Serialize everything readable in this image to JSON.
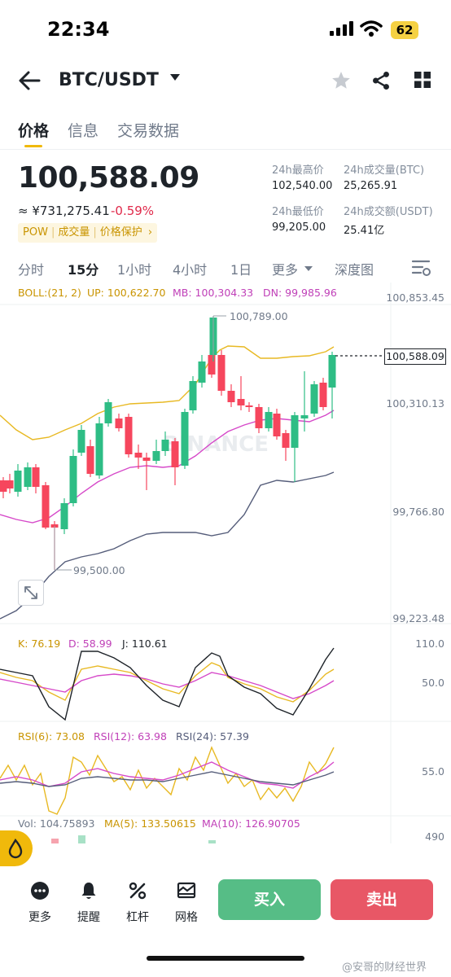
{
  "status_bar": {
    "time": "22:34",
    "battery": "62"
  },
  "header": {
    "pair": "BTC/USDT"
  },
  "tabs": [
    "价格",
    "信息",
    "交易数据"
  ],
  "price": {
    "last": "100,588.09",
    "cny": "≈ ¥731,275.41",
    "change": "-0.59%",
    "tags": [
      "POW",
      "成交量",
      "价格保护"
    ],
    "tags_arrow": "›"
  },
  "stats": {
    "high_label": "24h最高价",
    "high": "102,540.00",
    "vol_btc_label": "24h成交量(BTC)",
    "vol_btc": "25,265.91",
    "low_label": "24h最低价",
    "low": "99,205.00",
    "vol_usdt_label": "24h成交额(USDT)",
    "vol_usdt": "25.41亿"
  },
  "intervals": [
    "分时",
    "15分",
    "1小时",
    "4小时",
    "1日",
    "更多",
    "深度图"
  ],
  "indicators": {
    "boll": "BOLL:(21, 2)",
    "up": "UP: 100,622.70",
    "mb": "MB: 100,304.33",
    "dn": "DN: 99,985.96",
    "k": "K: 76.19",
    "d": "D: 58.99",
    "j": "J: 110.61",
    "rsi6": "RSI(6): 73.08",
    "rsi12": "RSI(12): 63.98",
    "rsi24": "RSI(24): 57.39",
    "vol": "Vol: 104.75893",
    "ma5": "MA(5): 133.50615",
    "ma10": "MA(10): 126.90705"
  },
  "axis": {
    "p1": "100,853.45",
    "p2": "100,310.13",
    "p3": "99,766.80",
    "p4": "99,223.48",
    "kdj_hi": "110.0",
    "kdj_mid": "50.0",
    "rsi_mid": "55.0",
    "vol_axis": "490"
  },
  "annotations": {
    "high_mark": "100,789.00",
    "low_mark": "99,500.00",
    "current_price": "100,588.09",
    "chart_watermark": "BINANCE"
  },
  "colors": {
    "up": "#2ebd85",
    "down": "#f6465d",
    "accent": "#f0b90b",
    "boll_up": "#e8b923",
    "boll_mb": "#d649c9",
    "boll_dn": "#555d7a"
  },
  "bottom": {
    "items": [
      {
        "label": "更多",
        "icon": "more-dots-icon"
      },
      {
        "label": "提醒",
        "icon": "bell-icon"
      },
      {
        "label": "杠杆",
        "icon": "percent-icon"
      },
      {
        "label": "网格",
        "icon": "grid-bot-icon"
      }
    ],
    "buy": "买入",
    "sell": "卖出"
  },
  "watermark": "@安哥的财经世界"
}
